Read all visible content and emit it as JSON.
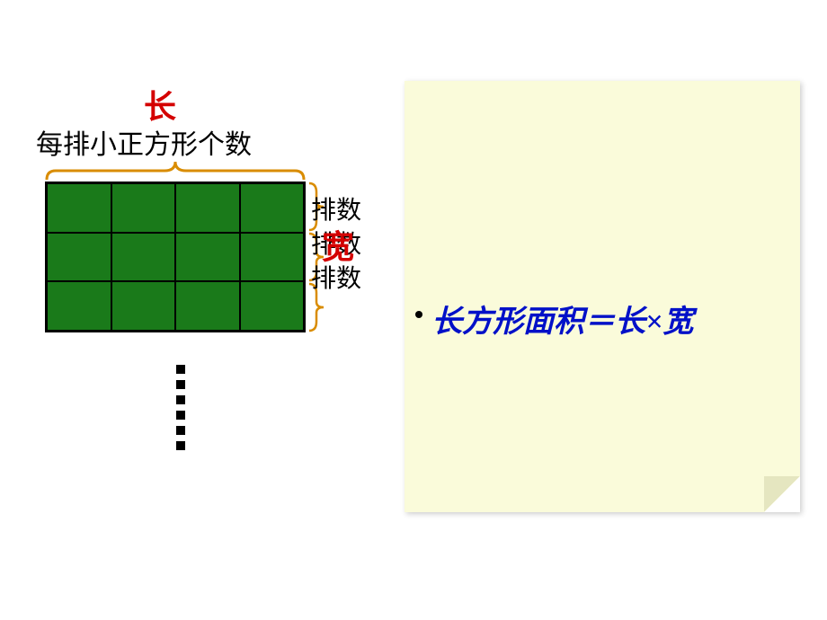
{
  "diagram": {
    "chang_label": "长",
    "chang_color": "#d40000",
    "top_label": "每排小正方形个数",
    "kuan_label": "宽",
    "kuan_color": "#d40000",
    "row_label": "排数",
    "grid": {
      "cols": 4,
      "rows": 3,
      "fill_color": "#1a7a1a",
      "border_color": "#000000"
    },
    "brace_color": "#d98c00",
    "dot_count": 6
  },
  "note": {
    "background": "#fafbda",
    "formula_text": "长方形面积＝长×宽",
    "formula_color": "#0010c8"
  }
}
